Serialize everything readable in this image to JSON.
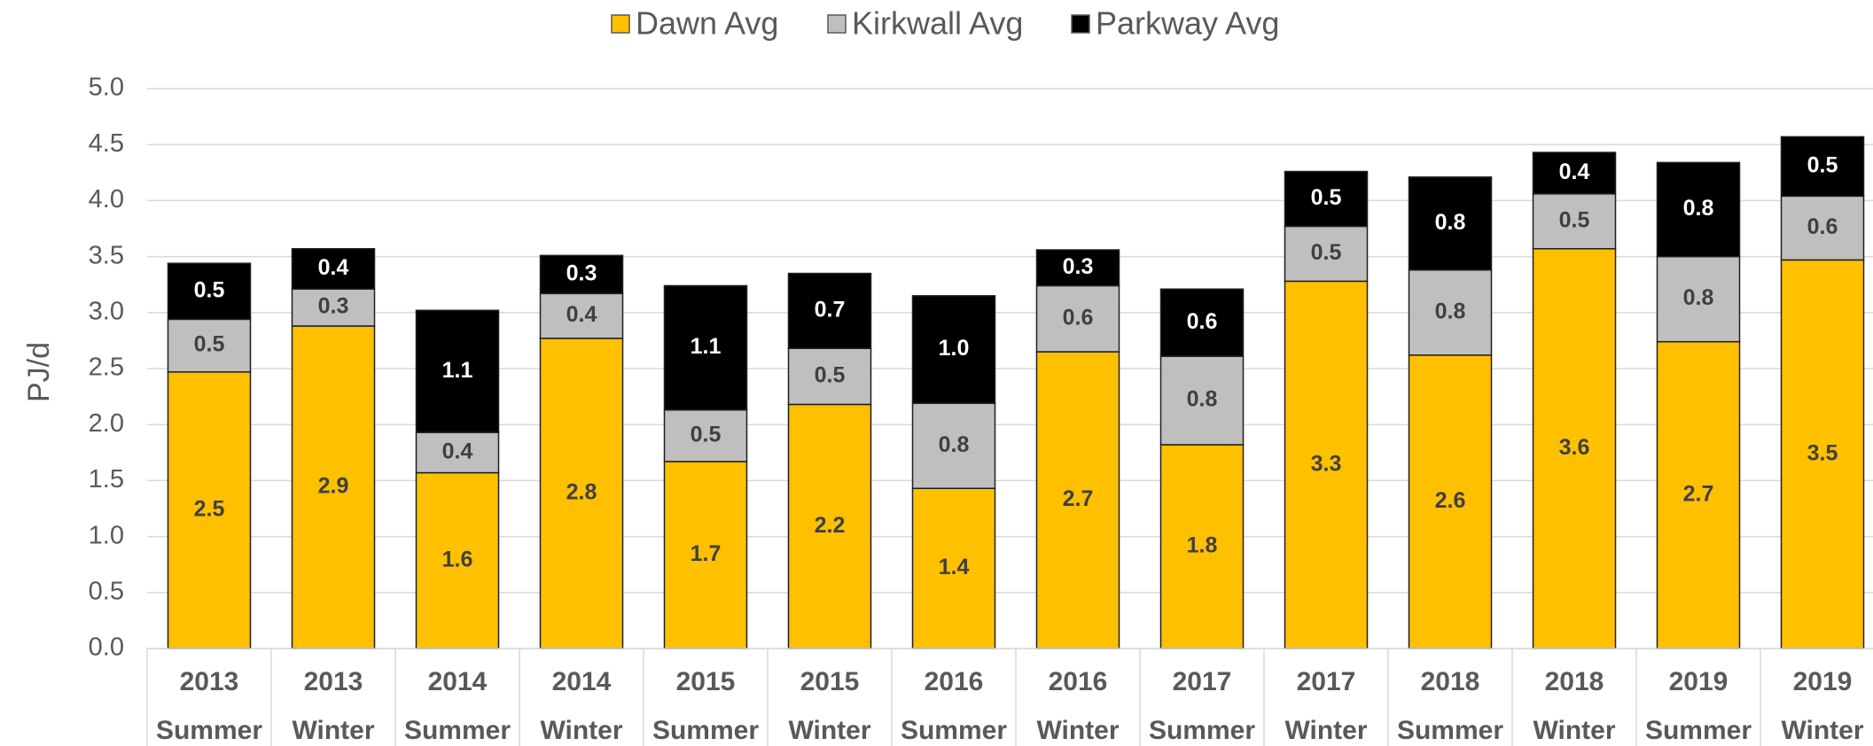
{
  "chart_data": {
    "type": "stacked_bar",
    "y_axis_label": "PJ/d",
    "categories": [
      [
        "2013",
        "Summer"
      ],
      [
        "2013",
        "Winter"
      ],
      [
        "2014",
        "Summer"
      ],
      [
        "2014",
        "Winter"
      ],
      [
        "2015",
        "Summer"
      ],
      [
        "2015",
        "Winter"
      ],
      [
        "2016",
        "Summer"
      ],
      [
        "2016",
        "Winter"
      ],
      [
        "2017",
        "Summer"
      ],
      [
        "2017",
        "Winter"
      ],
      [
        "2018",
        "Summer"
      ],
      [
        "2018",
        "Winter"
      ],
      [
        "2019",
        "Summer"
      ],
      [
        "2019",
        "Winter"
      ]
    ],
    "series": [
      {
        "name": "Dawn Avg",
        "color": "#ffc000",
        "values": [
          2.47,
          2.88,
          1.57,
          2.77,
          1.67,
          2.18,
          1.43,
          2.65,
          1.82,
          3.28,
          2.62,
          3.57,
          2.74,
          3.47
        ],
        "value_labels": [
          "2.5",
          "2.9",
          "1.6",
          "2.8",
          "1.7",
          "2.2",
          "1.4",
          "2.7",
          "1.8",
          "3.3",
          "2.6",
          "3.6",
          "2.7",
          "3.5"
        ]
      },
      {
        "name": "Kirkwall Avg",
        "color": "#bfbfbf",
        "values": [
          0.47,
          0.33,
          0.36,
          0.4,
          0.46,
          0.5,
          0.76,
          0.59,
          0.79,
          0.49,
          0.76,
          0.49,
          0.76,
          0.57
        ],
        "value_labels": [
          "0.5",
          "0.3",
          "0.4",
          "0.4",
          "0.5",
          "0.5",
          "0.8",
          "0.6",
          "0.8",
          "0.5",
          "0.8",
          "0.5",
          "0.8",
          "0.6"
        ]
      },
      {
        "name": "Parkway Avg",
        "color": "#000000",
        "values": [
          0.5,
          0.36,
          1.09,
          0.34,
          1.11,
          0.67,
          0.96,
          0.32,
          0.6,
          0.49,
          0.83,
          0.37,
          0.84,
          0.53
        ],
        "value_labels": [
          "0.5",
          "0.4",
          "1.1",
          "0.3",
          "1.1",
          "0.7",
          "1.0",
          "0.3",
          "0.6",
          "0.5",
          "0.8",
          "0.4",
          "0.8",
          "0.5"
        ]
      }
    ],
    "ylim": [
      0,
      5
    ],
    "yticks": [
      {
        "value": 0,
        "label": "0.0"
      },
      0.5,
      {
        "value": 1,
        "label": "1.0"
      },
      1.5,
      {
        "value": 2,
        "label": "2.0"
      },
      2.5,
      {
        "value": 3,
        "label": "3.0"
      },
      3.5,
      {
        "value": 4,
        "label": "4.0"
      },
      4.5,
      {
        "value": 5,
        "label": "5.0"
      }
    ],
    "grid": true,
    "legend": "top"
  }
}
